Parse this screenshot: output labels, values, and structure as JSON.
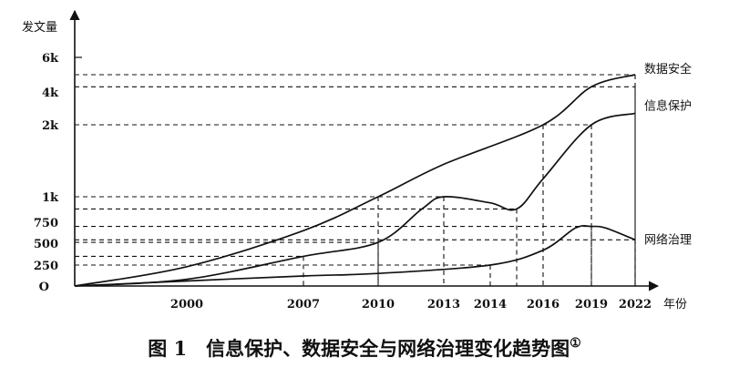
{
  "caption": {
    "text": "图 1　信息保护、数据安全与网络治理变化趋势图",
    "note": "①"
  },
  "chart_data": {
    "type": "line",
    "title": "",
    "xlabel": "年份",
    "ylabel": "发文量",
    "y_scale": "piecewise",
    "x_ticks": [
      "2000",
      "2007",
      "2010",
      "2013",
      "2014",
      "2016",
      "2019",
      "2022"
    ],
    "y_ticks": [
      "O",
      "250",
      "500",
      "750",
      "1k",
      "2k",
      "4k",
      "6k"
    ],
    "grid": false,
    "series": [
      {
        "name": "数据安全",
        "x": [
          1995,
          2000,
          2007,
          2010,
          2013,
          2016,
          2019,
          2022
        ],
        "y": [
          0,
          230,
          650,
          1000,
          1450,
          2000,
          4300,
          5000
        ]
      },
      {
        "name": "信息保护",
        "x": [
          1995,
          2000,
          2007,
          2010,
          2012,
          2013,
          2014,
          2015,
          2016,
          2019,
          2022
        ],
        "y": [
          0,
          80,
          350,
          510,
          880,
          1000,
          940,
          880,
          1250,
          2000,
          2700
        ]
      },
      {
        "name": "网络治理",
        "x": [
          1995,
          2000,
          2007,
          2010,
          2014,
          2016,
          2018,
          2019,
          2020,
          2022
        ],
        "y": [
          0,
          60,
          120,
          150,
          250,
          420,
          680,
          700,
          680,
          540
        ]
      }
    ],
    "reference_lines": [
      {
        "x": 2007,
        "y": 350
      },
      {
        "x": 2010,
        "y": 1000
      },
      {
        "x": 2013,
        "y": 1000
      },
      {
        "x": 2014,
        "y": 250
      },
      {
        "x": 2015,
        "y": 880
      },
      {
        "x": 2016,
        "y": 2000
      },
      {
        "x": 2019,
        "y": 2000
      },
      {
        "x": 2019,
        "y": 700
      },
      {
        "x": 2022,
        "y": 540
      },
      {
        "x": 2022,
        "y": 4300
      },
      {
        "x": 2022,
        "y": 5000
      },
      {
        "x": 2010,
        "y": 510
      }
    ]
  }
}
